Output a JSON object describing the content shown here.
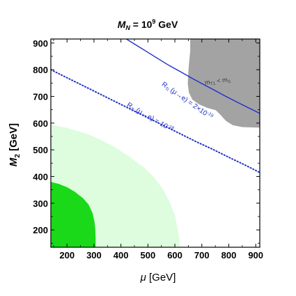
{
  "chart_data": {
    "type": "contour",
    "title_parts": {
      "main": "M",
      "sub": "N",
      "eq": " = 10",
      "sup": "9",
      "unit": " GeV"
    },
    "xlabel_parts": {
      "main": "μ",
      "rest": " [GeV]"
    },
    "ylabel_parts": {
      "main": "M",
      "sub": "2",
      "rest": " [GeV]"
    },
    "xlim": [
      140,
      915
    ],
    "ylim": [
      135,
      915
    ],
    "xticks": [
      200,
      300,
      400,
      500,
      600,
      700,
      800,
      900
    ],
    "yticks": [
      200,
      300,
      400,
      500,
      600,
      700,
      800,
      900
    ],
    "colors": {
      "dark_green": "#19d919",
      "light_green": "#ddfdde",
      "gray_region": "#a3a3a3",
      "curve_blue": "#1f2fc8"
    },
    "regions": [
      {
        "name": "dark-green-region",
        "boundary": [
          [
            140,
            380
          ],
          [
            170,
            372
          ],
          [
            200,
            360
          ],
          [
            230,
            342
          ],
          [
            260,
            318
          ],
          [
            280,
            295
          ],
          [
            295,
            262
          ],
          [
            302,
            230
          ],
          [
            305,
            200
          ],
          [
            306,
            170
          ],
          [
            306,
            135
          ],
          [
            140,
            135
          ]
        ]
      },
      {
        "name": "light-green-region",
        "boundary": [
          [
            140,
            595
          ],
          [
            200,
            582
          ],
          [
            260,
            565
          ],
          [
            320,
            540
          ],
          [
            380,
            508
          ],
          [
            430,
            475
          ],
          [
            480,
            438
          ],
          [
            520,
            400
          ],
          [
            555,
            355
          ],
          [
            580,
            305
          ],
          [
            600,
            255
          ],
          [
            612,
            195
          ],
          [
            617,
            160
          ],
          [
            618,
            135
          ],
          [
            140,
            135
          ]
        ]
      },
      {
        "name": "gray-excluded-region",
        "boundary": [
          [
            657,
            915
          ],
          [
            657,
            870
          ],
          [
            653,
            830
          ],
          [
            650,
            790
          ],
          [
            648,
            748
          ],
          [
            652,
            715
          ],
          [
            665,
            688
          ],
          [
            690,
            670
          ],
          [
            720,
            657
          ],
          [
            752,
            648
          ],
          [
            770,
            630
          ],
          [
            790,
            608
          ],
          [
            815,
            592
          ],
          [
            850,
            585
          ],
          [
            915,
            583
          ],
          [
            915,
            915
          ]
        ],
        "label_parts": {
          "a": "m",
          "asub": "T1",
          "op": " < m",
          "bsub": "l1"
        }
      }
    ],
    "curves": [
      {
        "name": "solid-contour",
        "style": "solid",
        "label_parts": {
          "a": "R",
          "asub": "Ti",
          "mid": " (μ→e) = 2×10",
          "sup": "-19"
        },
        "points": [
          [
            420,
            915
          ],
          [
            460,
            890
          ],
          [
            500,
            865
          ],
          [
            540,
            840
          ],
          [
            580,
            815
          ],
          [
            620,
            793
          ],
          [
            660,
            770
          ],
          [
            700,
            748
          ],
          [
            740,
            727
          ],
          [
            780,
            705
          ],
          [
            820,
            684
          ],
          [
            860,
            664
          ],
          [
            900,
            644
          ],
          [
            915,
            636
          ]
        ]
      },
      {
        "name": "dotted-contour",
        "style": "dotted",
        "label_parts": {
          "a": "R",
          "asub": "Ti",
          "mid": " (μ→e) = 10",
          "sup": "-18"
        },
        "points": [
          [
            140,
            800
          ],
          [
            200,
            770
          ],
          [
            260,
            740
          ],
          [
            320,
            710
          ],
          [
            380,
            680
          ],
          [
            440,
            650
          ],
          [
            500,
            620
          ],
          [
            560,
            590
          ],
          [
            620,
            560
          ],
          [
            680,
            530
          ],
          [
            740,
            502
          ],
          [
            800,
            472
          ],
          [
            860,
            443
          ],
          [
            915,
            415
          ]
        ]
      }
    ]
  }
}
